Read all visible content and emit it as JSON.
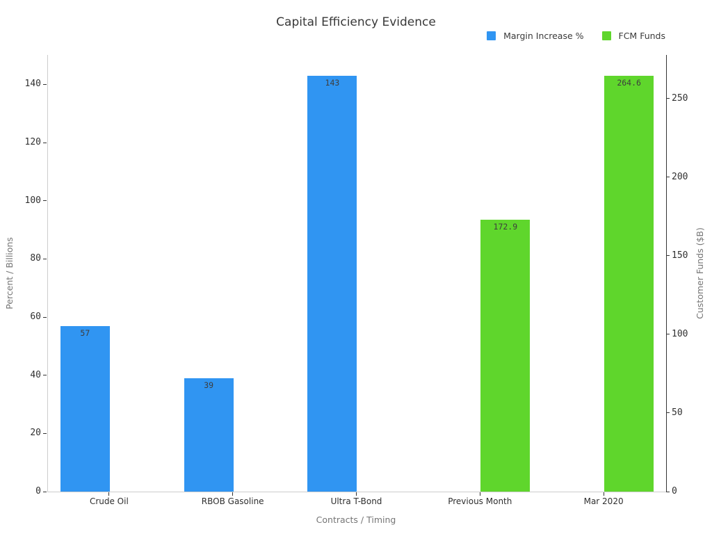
{
  "chart_data": {
    "type": "bar",
    "title": "Capital Efficiency Evidence",
    "xlabel": "Contracts / Timing",
    "ylabel_left": "Percent / Billions",
    "ylabel_right": "Customer Funds ($B)",
    "categories": [
      "Crude Oil",
      "RBOB Gasoline",
      "Ultra T-Bond",
      "Previous Month",
      "Mar 2020"
    ],
    "series": [
      {
        "name": "Margin Increase %",
        "axis": "left",
        "color": "#3095F2",
        "values": [
          57,
          39,
          143,
          null,
          null
        ],
        "value_labels": [
          "57",
          "39",
          "143",
          null,
          null
        ]
      },
      {
        "name": "FCM Funds",
        "axis": "right",
        "color": "#5FD62C",
        "values": [
          null,
          null,
          null,
          172.9,
          264.6
        ],
        "value_labels": [
          null,
          null,
          null,
          "172.9",
          "264.6"
        ]
      }
    ],
    "left_axis": {
      "ticks": [
        0,
        20,
        40,
        60,
        80,
        100,
        120,
        140
      ],
      "ylim": [
        0,
        150.15
      ]
    },
    "right_axis": {
      "ticks": [
        0,
        50,
        100,
        150,
        200,
        250
      ],
      "ylim": [
        0,
        277.83
      ]
    },
    "legend_position": "top-right",
    "grid": false
  }
}
